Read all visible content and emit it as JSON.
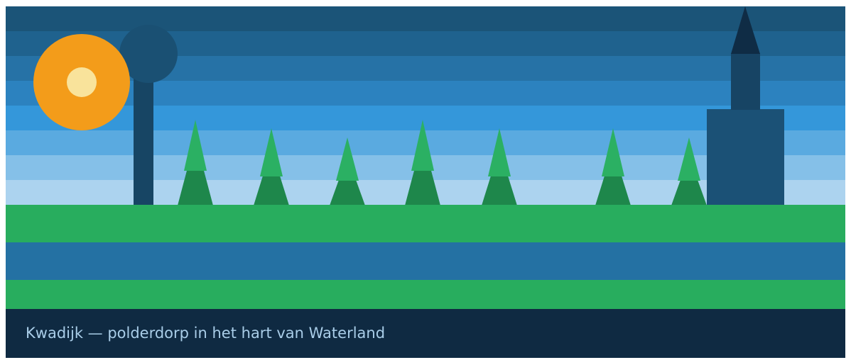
{
  "caption": "Kwadijk — polderdorp in het hart van Waterland",
  "colors": {
    "sky_bands": [
      "#1b5478",
      "#1f628e",
      "#2672a6",
      "#2c82bf",
      "#3497da",
      "#5aaae0",
      "#85c0e8",
      "#acd3ef"
    ],
    "sun_outer": "#f39c1a",
    "sun_inner": "#f9e39b",
    "windmill": "#174564",
    "windmill_head": "#1a5073",
    "tree_top": "#2bb063",
    "tree_bottom": "#1e874b",
    "church_body": "#1b5176",
    "church_tower": "#174464",
    "church_spire": "#0f2c45",
    "grass": "#28ad5e",
    "water": "#2471a3",
    "caption_bar": "#0f2a42",
    "caption_text": "#a9cde8"
  }
}
